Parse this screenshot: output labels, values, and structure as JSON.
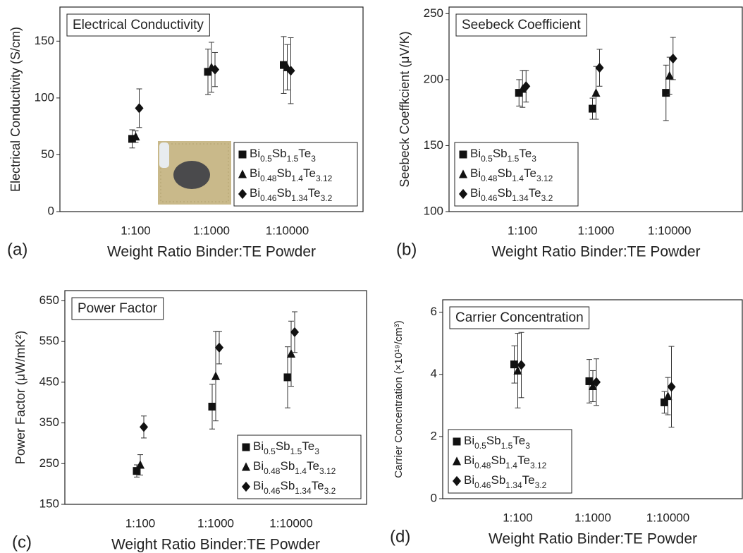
{
  "chart_data": [
    {
      "type": "scatter",
      "title": "Electrical Conductivity",
      "panel_label": "(a)",
      "x_label": "Weight Ratio Binder:TE Powder",
      "y_label": "Electrical Conductivity (S/cm)",
      "categories": [
        "1:100",
        "1:1000",
        "1:10000"
      ],
      "ylim": [
        0,
        180
      ],
      "yticks": [
        0,
        50,
        100,
        150
      ],
      "legend": "lower right",
      "series": [
        {
          "name": "Bi0.5Sb1.5Te3",
          "marker": "square",
          "color": "#111",
          "values": [
            64,
            123,
            129
          ],
          "errors": [
            8,
            20,
            25
          ]
        },
        {
          "name": "Bi0.48Sb1.4Te3.12",
          "marker": "triangle",
          "color": "#111",
          "values": [
            66,
            127,
            127
          ],
          "errors": [
            5,
            22,
            20
          ]
        },
        {
          "name": "Bi0.46Sb1.34Te3.2",
          "marker": "diamond",
          "color": "#111",
          "values": [
            91,
            125,
            124
          ],
          "errors": [
            17,
            15,
            29
          ]
        }
      ]
    },
    {
      "type": "scatter",
      "title": "Seebeck Coefficient",
      "panel_label": "(b)",
      "x_label": "Weight Ratio Binder:TE Powder",
      "y_label": "Seebeck Coeffkcient (μV/K)",
      "categories": [
        "1:100",
        "1:1000",
        "1:10000"
      ],
      "ylim": [
        100,
        255
      ],
      "yticks": [
        100,
        150,
        200,
        250
      ],
      "legend": "lower left",
      "series": [
        {
          "name": "Bi0.5Sb1.5Te3",
          "marker": "square",
          "color": "#111",
          "values": [
            190,
            178,
            190
          ],
          "errors": [
            10,
            8,
            21
          ]
        },
        {
          "name": "Bi0.48Sb1.4Te3.12",
          "marker": "triangle",
          "color": "#111",
          "values": [
            193,
            190,
            203
          ],
          "errors": [
            14,
            20,
            14
          ]
        },
        {
          "name": "Bi0.46Sb1.34Te3.2",
          "marker": "diamond",
          "color": "#111",
          "values": [
            195,
            209,
            216
          ],
          "errors": [
            12,
            14,
            16
          ]
        }
      ]
    },
    {
      "type": "scatter",
      "title": "Power Factor",
      "panel_label": "(c)",
      "x_label": "Weight Ratio Binder:TE Powder",
      "y_label": "Power Factor (μW/mK²)",
      "categories": [
        "1:100",
        "1:1000",
        "1:10000"
      ],
      "ylim": [
        150,
        675
      ],
      "yticks": [
        150,
        250,
        350,
        450,
        550,
        650
      ],
      "legend": "lower right",
      "series": [
        {
          "name": "Bi0.5Sb1.5Te3",
          "marker": "square",
          "color": "#111",
          "values": [
            232,
            390,
            462
          ],
          "errors": [
            15,
            55,
            75
          ]
        },
        {
          "name": "Bi0.48Sb1.4Te3.12",
          "marker": "triangle",
          "color": "#111",
          "values": [
            247,
            465,
            520
          ],
          "errors": [
            25,
            110,
            80
          ]
        },
        {
          "name": "Bi0.46Sb1.34Te3.2",
          "marker": "diamond",
          "color": "#111",
          "values": [
            340,
            535,
            573
          ],
          "errors": [
            27,
            40,
            50
          ]
        }
      ]
    },
    {
      "type": "scatter",
      "title": "Carrier Concentration",
      "panel_label": "(d)",
      "x_label": "Weight Ratio Binder:TE Powder",
      "y_label": "Carrier Concentration (×10¹⁹/cm³)",
      "categories": [
        "1:100",
        "1:1000",
        "1:10000"
      ],
      "ylim": [
        0,
        6.4
      ],
      "yticks": [
        0,
        2,
        4,
        6
      ],
      "legend": "lower left",
      "series": [
        {
          "name": "Bi0.5Sb1.5Te3",
          "marker": "square",
          "color": "#111",
          "values": [
            4.32,
            3.78,
            3.1
          ],
          "errors": [
            0.6,
            0.7,
            0.35
          ]
        },
        {
          "name": "Bi0.48Sb1.4Te3.12",
          "marker": "triangle",
          "color": "#111",
          "values": [
            4.12,
            3.62,
            3.3
          ],
          "errors": [
            1.2,
            0.5,
            0.6
          ]
        },
        {
          "name": "Bi0.46Sb1.34Te3.2",
          "marker": "diamond",
          "color": "#111",
          "values": [
            4.3,
            3.75,
            3.6
          ],
          "errors": [
            1.05,
            0.75,
            1.3
          ]
        }
      ]
    }
  ]
}
